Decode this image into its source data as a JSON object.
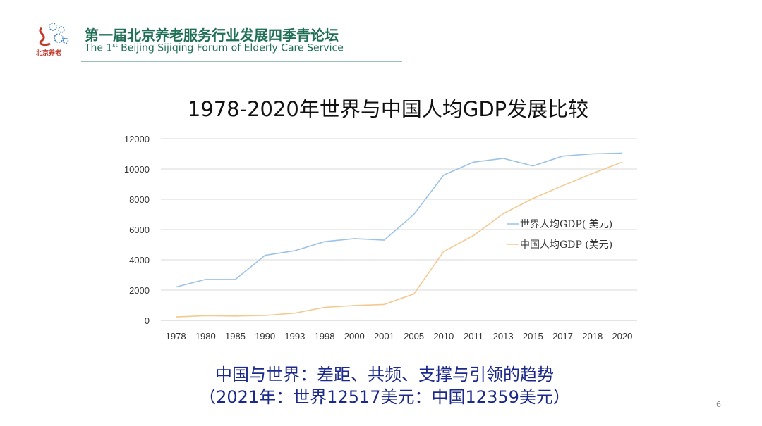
{
  "header": {
    "logo_text": "北京养老",
    "title_cn": "第一届北京养老服务行业发展四季青论坛",
    "title_en_pre": "The 1",
    "title_en_sup": "st",
    "title_en_post": " Beijing Sijiqing Forum of Elderly Care Service",
    "accent_color": "#1f6f55"
  },
  "chart_data": {
    "type": "line",
    "title": "1978-2020年世界与中国人均GDP发展比较",
    "categories": [
      "1978",
      "1980",
      "1985",
      "1990",
      "1993",
      "1998",
      "2000",
      "2001",
      "2005",
      "2010",
      "2011",
      "2013",
      "2015",
      "2017",
      "2018",
      "2020"
    ],
    "series": [
      {
        "name": "世界人均GDP( 美元)",
        "color": "#9cc3e5",
        "values": [
          2200,
          2700,
          2700,
          4300,
          4600,
          5200,
          5400,
          5300,
          7000,
          9600,
          10450,
          10700,
          10200,
          10850,
          11000,
          11050
        ]
      },
      {
        "name": "中国人均GDP (美元)",
        "color": "#f4c98f",
        "values": [
          230,
          310,
          290,
          330,
          480,
          860,
          980,
          1050,
          1750,
          4550,
          5600,
          7050,
          8050,
          8900,
          9700,
          10450
        ]
      }
    ],
    "yticks": [
      "0",
      "2000",
      "4000",
      "6000",
      "8000",
      "10000",
      "12000"
    ],
    "ylim": [
      0,
      12000
    ],
    "grid": true,
    "legend_position": "right"
  },
  "footer": {
    "line1": "中国与世界：差距、共频、支撑与引领的趋势",
    "line2": "（2021年：世界12517美元：中国12359美元）"
  },
  "page_number": "6"
}
